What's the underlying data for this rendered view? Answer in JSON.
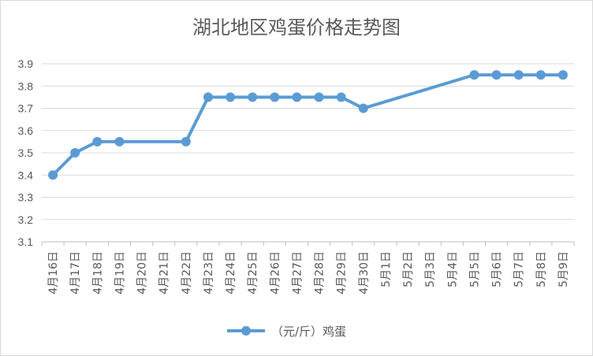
{
  "chart_data": {
    "type": "line",
    "title": "湖北地区鸡蛋价格走势图",
    "categories": [
      "4月16日",
      "4月17日",
      "4月18日",
      "4月19日",
      "4月20日",
      "4月21日",
      "4月22日",
      "4月23日",
      "4月24日",
      "4月25日",
      "4月26日",
      "4月27日",
      "4月28日",
      "4月29日",
      "4月30日",
      "5月1日",
      "5月2日",
      "5月3日",
      "5月4日",
      "5月5日",
      "5月6日",
      "5月7日",
      "5月8日",
      "5月9日"
    ],
    "series": [
      {
        "name": "（元/斤）鸡蛋",
        "values": [
          3.4,
          3.5,
          3.55,
          3.55,
          null,
          null,
          3.55,
          3.75,
          3.75,
          3.75,
          3.75,
          3.75,
          3.75,
          3.75,
          3.7,
          null,
          null,
          null,
          null,
          3.85,
          3.85,
          3.85,
          3.85,
          3.85
        ],
        "color": "#5b9bd5"
      }
    ],
    "ylim": [
      3.1,
      3.9
    ],
    "yticks": [
      "3.1",
      "3.2",
      "3.3",
      "3.4",
      "3.5",
      "3.6",
      "3.7",
      "3.8",
      "3.9"
    ],
    "gridlines": true,
    "legend_position": "bottom"
  }
}
